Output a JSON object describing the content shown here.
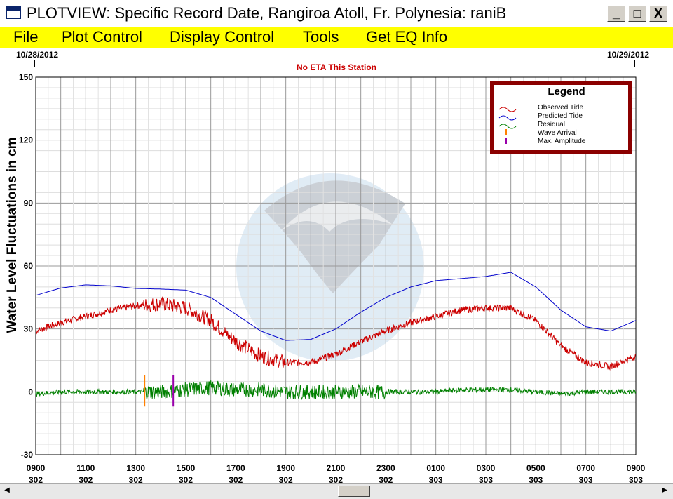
{
  "window": {
    "title": "PLOTVIEW: Specific Record Date, Rangiroa Atoll, Fr. Polynesia: raniB",
    "controls": {
      "minimize": "_",
      "maximize": "□",
      "close": "X"
    }
  },
  "menu": {
    "items": [
      "File",
      "Plot Control",
      "Display Control",
      "Tools",
      "Get EQ Info"
    ]
  },
  "plot": {
    "date_left": "10/28/2012",
    "date_right": "10/29/2012",
    "notice": "No ETA This Station",
    "watermark_icon": "noaa-logo"
  },
  "chart_data": {
    "type": "line",
    "title": "",
    "xlabel": "",
    "ylabel": "Water Level Fluctuations in cm",
    "xlim": [
      0,
      24
    ],
    "ylim": [
      -30,
      150
    ],
    "grid": true,
    "y_ticks": [
      "150",
      "120",
      "90",
      "60",
      "30",
      "0",
      "-30"
    ],
    "x_ticks": [
      {
        "top": "0900",
        "bottom": "302"
      },
      {
        "top": "1100",
        "bottom": "302"
      },
      {
        "top": "1300",
        "bottom": "302"
      },
      {
        "top": "1500",
        "bottom": "302"
      },
      {
        "top": "1700",
        "bottom": "302"
      },
      {
        "top": "1900",
        "bottom": "302"
      },
      {
        "top": "2100",
        "bottom": "302"
      },
      {
        "top": "2300",
        "bottom": "302"
      },
      {
        "top": "0100",
        "bottom": "303"
      },
      {
        "top": "0300",
        "bottom": "303"
      },
      {
        "top": "0500",
        "bottom": "303"
      },
      {
        "top": "0700",
        "bottom": "303"
      },
      {
        "top": "0900",
        "bottom": "303"
      }
    ],
    "x_hours": [
      0,
      1,
      2,
      3,
      4,
      5,
      6,
      7,
      8,
      9,
      10,
      11,
      12,
      13,
      14,
      15,
      16,
      17,
      18,
      19,
      20,
      21,
      22,
      23,
      24
    ],
    "series": [
      {
        "name": "Predicted Tide",
        "color": "#0000cc",
        "values": [
          46,
          49.5,
          51,
          50.5,
          49.3,
          49,
          48.5,
          45,
          37,
          29,
          24.5,
          25,
          30,
          38,
          45,
          50,
          53,
          54,
          55,
          57,
          50,
          39,
          31,
          29,
          34
        ]
      },
      {
        "name": "Observed Tide",
        "color": "#cc0000",
        "values": [
          29,
          33,
          36,
          39,
          41,
          42,
          40,
          34,
          24,
          17,
          14,
          14,
          18,
          24,
          29,
          33,
          36,
          39,
          40,
          40,
          34,
          22,
          14,
          12,
          17
        ]
      },
      {
        "name": "Residual",
        "color": "#008000",
        "values": [
          -1,
          0,
          0,
          0,
          0,
          0,
          1,
          2,
          1,
          1,
          0,
          0,
          0,
          0,
          0,
          0,
          0,
          1,
          1,
          1,
          0,
          -1,
          0,
          0,
          0
        ]
      }
    ],
    "markers": [
      {
        "name": "Wave Arrival",
        "color": "#ff8000",
        "x": 4.35,
        "y_range": [
          -7,
          8
        ]
      },
      {
        "name": "Max. Amplitude",
        "color": "#9900aa",
        "x": 5.5,
        "y_range": [
          -7,
          8
        ]
      }
    ],
    "legend": {
      "title": "Legend",
      "position": "top-right",
      "entries": [
        "Observed Tide",
        "Predicted Tide",
        "Residual",
        "Wave Arrival",
        "Max. Amplitude"
      ]
    }
  },
  "scrollbar": {
    "left_arrow": "◀",
    "right_arrow": "▶"
  }
}
